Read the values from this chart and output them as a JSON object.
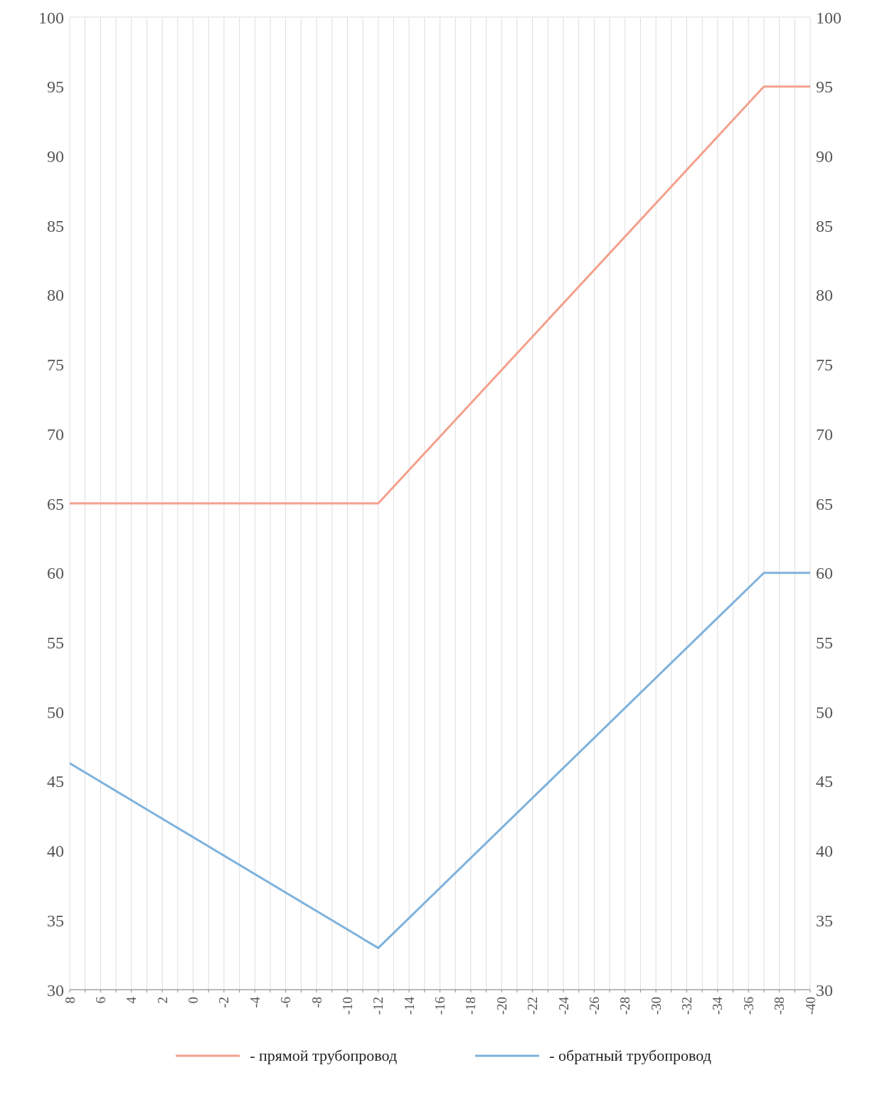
{
  "chart_data": {
    "type": "line",
    "x": [
      8,
      -12,
      -37,
      -40
    ],
    "xlim": [
      8,
      -40
    ],
    "xticks": [
      8,
      {
        "value": 7,
        "label": null
      },
      6,
      {
        "value": 5,
        "label": null
      },
      4,
      {
        "value": 3,
        "label": null
      },
      2,
      {
        "value": 1,
        "label": null
      },
      0,
      {
        "value": -1,
        "label": null
      },
      -2,
      {
        "value": -3,
        "label": null
      },
      -4,
      {
        "value": -5,
        "label": null
      },
      -6,
      {
        "value": -7,
        "label": null
      },
      -8,
      {
        "value": -9,
        "label": null
      },
      -10,
      {
        "value": -11,
        "label": null
      },
      -12,
      {
        "value": -13,
        "label": null
      },
      -14,
      {
        "value": -15,
        "label": null
      },
      -16,
      {
        "value": -17,
        "label": null
      },
      -18,
      {
        "value": -19,
        "label": null
      },
      -20,
      {
        "value": -21,
        "label": null
      },
      -22,
      {
        "value": -23,
        "label": null
      },
      -24,
      {
        "value": -25,
        "label": null
      },
      -26,
      {
        "value": -27,
        "label": null
      },
      -28,
      {
        "value": -29,
        "label": null
      },
      -30,
      {
        "value": -31,
        "label": null
      },
      -32,
      {
        "value": -33,
        "label": null
      },
      -34,
      {
        "value": -35,
        "label": null
      },
      -36,
      {
        "value": -37,
        "label": null
      },
      -38,
      {
        "value": -39,
        "label": null
      },
      -40
    ],
    "ylim": [
      30,
      100
    ],
    "yticks": [
      30,
      35,
      40,
      45,
      50,
      55,
      60,
      65,
      70,
      75,
      80,
      85,
      90,
      95,
      100
    ],
    "y2lim": [
      30,
      100
    ],
    "y2ticks": [
      30,
      35,
      40,
      45,
      50,
      55,
      60,
      65,
      70,
      75,
      80,
      85,
      90,
      95,
      100
    ],
    "series": [
      {
        "name": "- прямой трубопровод",
        "color": "#f4a08c",
        "values": [
          65,
          65,
          95,
          95
        ]
      },
      {
        "name": "- обратный трубопровод",
        "color": "#7fb2dc",
        "values": [
          46.3,
          33,
          60,
          60
        ]
      }
    ],
    "grid": true,
    "legend": "bottom",
    "marker": "none",
    "line_style": "solid"
  }
}
